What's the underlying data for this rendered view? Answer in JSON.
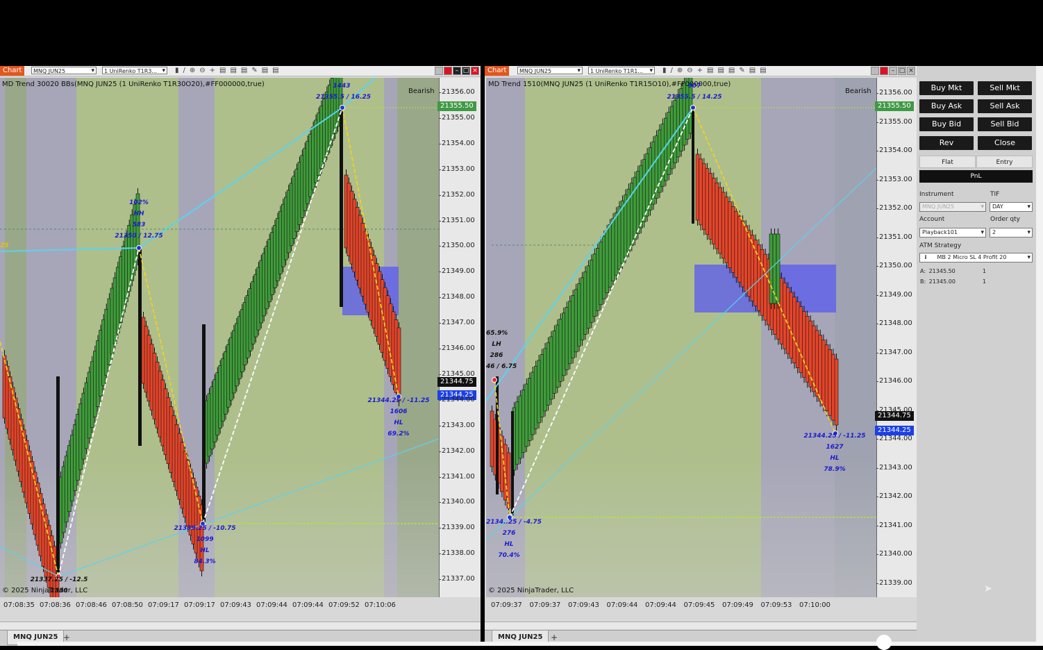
{
  "left_chart": {
    "chart_button": "Chart",
    "instrument_select": "MNQ JUN25",
    "bartype_select": "1 UniRenko T1R3...",
    "indicator_title": "MD Trend 30020 BBs(MNQ JUN25 (1 UniRenko T1R30O20),#FF000000,true)",
    "trend_label": "Bearish",
    "copyright": "© 2025 NinjaTrader, LLC",
    "y_ticks": [
      "21356.00",
      "21355.00",
      "21354.00",
      "21353.00",
      "21352.00",
      "21351.00",
      "21350.00",
      "21349.00",
      "21348.00",
      "21347.00",
      "21346.00",
      "21345.00",
      "21344.00",
      "21343.00",
      "21342.00",
      "21341.00",
      "21340.00",
      "21339.00",
      "21338.00",
      "21337.00"
    ],
    "price_labels": {
      "last": "21355.50",
      "ask": "21344.75",
      "bid": "21344.25"
    },
    "x_ticks": [
      "07:08:35",
      "07:08:36",
      "07:08:46",
      "07:08:50",
      "07:09:17",
      "07:09:17",
      "07:09:43",
      "07:09:44",
      "07:09:44",
      "07:09:52",
      "07:10:06"
    ],
    "annotations": {
      "swing_top": [
        "1443",
        "21355.5 / 16.25"
      ],
      "swing_mid": [
        "102%",
        "HH",
        "583",
        "21350 / 12.75"
      ],
      "swing_low1": [
        "21337.25 / -12.5",
        "1330"
      ],
      "swing_low2": [
        "21339.25 / -10.75",
        "1099",
        "HL",
        "84.3%"
      ],
      "swing_last": [
        "21344.25 / -11.25",
        "1606",
        "HL",
        "69.2%"
      ],
      "edge_label": "25"
    },
    "tab_label": "MNQ JUN25",
    "tab_add": "+"
  },
  "right_chart": {
    "chart_button": "Chart",
    "instrument_select": "MNQ JUN25",
    "bartype_select": "1 UniRenko T1R1...",
    "indicator_title": "MD Trend 1510(MNQ JUN25 (1 UniRenko T1R15O10),#FF000000,true)",
    "trend_label": "Bearish",
    "copyright": "© 2025 NinjaTrader, LLC",
    "y_ticks": [
      "21356.00",
      "21355.00",
      "21354.00",
      "21353.00",
      "21352.00",
      "21351.00",
      "21350.00",
      "21349.00",
      "21348.00",
      "21347.00",
      "21346.00",
      "21345.00",
      "21344.00",
      "21343.00",
      "21342.00",
      "21341.00",
      "21340.00",
      "21339.00"
    ],
    "price_labels": {
      "last": "21355.50",
      "ask": "21344.75",
      "bid": "21344.25"
    },
    "x_ticks": [
      "07:09:37",
      "07:09:37",
      "07:09:43",
      "07:09:44",
      "07:09:44",
      "07:09:45",
      "07:09:49",
      "07:09:53",
      "07:10:00"
    ],
    "annotations": {
      "swing_top": [
        "907",
        "21355.5 / 14.25"
      ],
      "swing_lh": [
        "65.9%",
        "LH",
        "286",
        "46 / 6.75"
      ],
      "swing_low": [
        "2134..25 / -4.75",
        "276",
        "HL",
        "70.4%"
      ],
      "swing_last": [
        "21344.25 / -11.25",
        "1627",
        "HL",
        "78.9%"
      ]
    },
    "tab_label": "MNQ JUN25",
    "tab_add": "+"
  },
  "order_panel": {
    "buttons": [
      "Buy Mkt",
      "Sell Mkt",
      "Buy Ask",
      "Sell Ask",
      "Buy Bid",
      "Sell Bid",
      "Rev",
      "Close"
    ],
    "flat": "Flat",
    "entry": "Entry",
    "pnl": "PnL",
    "instrument_label": "Instrument",
    "instrument_value": "MNQ JUN25",
    "tif_label": "TIF",
    "tif_value": "DAY",
    "account_label": "Account",
    "account_value": "Playback101",
    "order_qty_label": "Order qty",
    "order_qty_value": "2",
    "atm_label": "ATM Strategy",
    "atm_value": "MB 2 Micro SL 4 Profit 20",
    "atm_info": "i",
    "ask_label": "A:",
    "ask_price": "21345.50",
    "ask_qty": "1",
    "bid_label": "B:",
    "bid_price": "21345.00",
    "bid_qty": "1"
  },
  "colors": {
    "bull": "#3f9c3a",
    "bear": "#e4452a",
    "trend_line": "#59d3f0",
    "zigzag_yellow": "#f0d21e",
    "zone": "#5a5af0"
  }
}
